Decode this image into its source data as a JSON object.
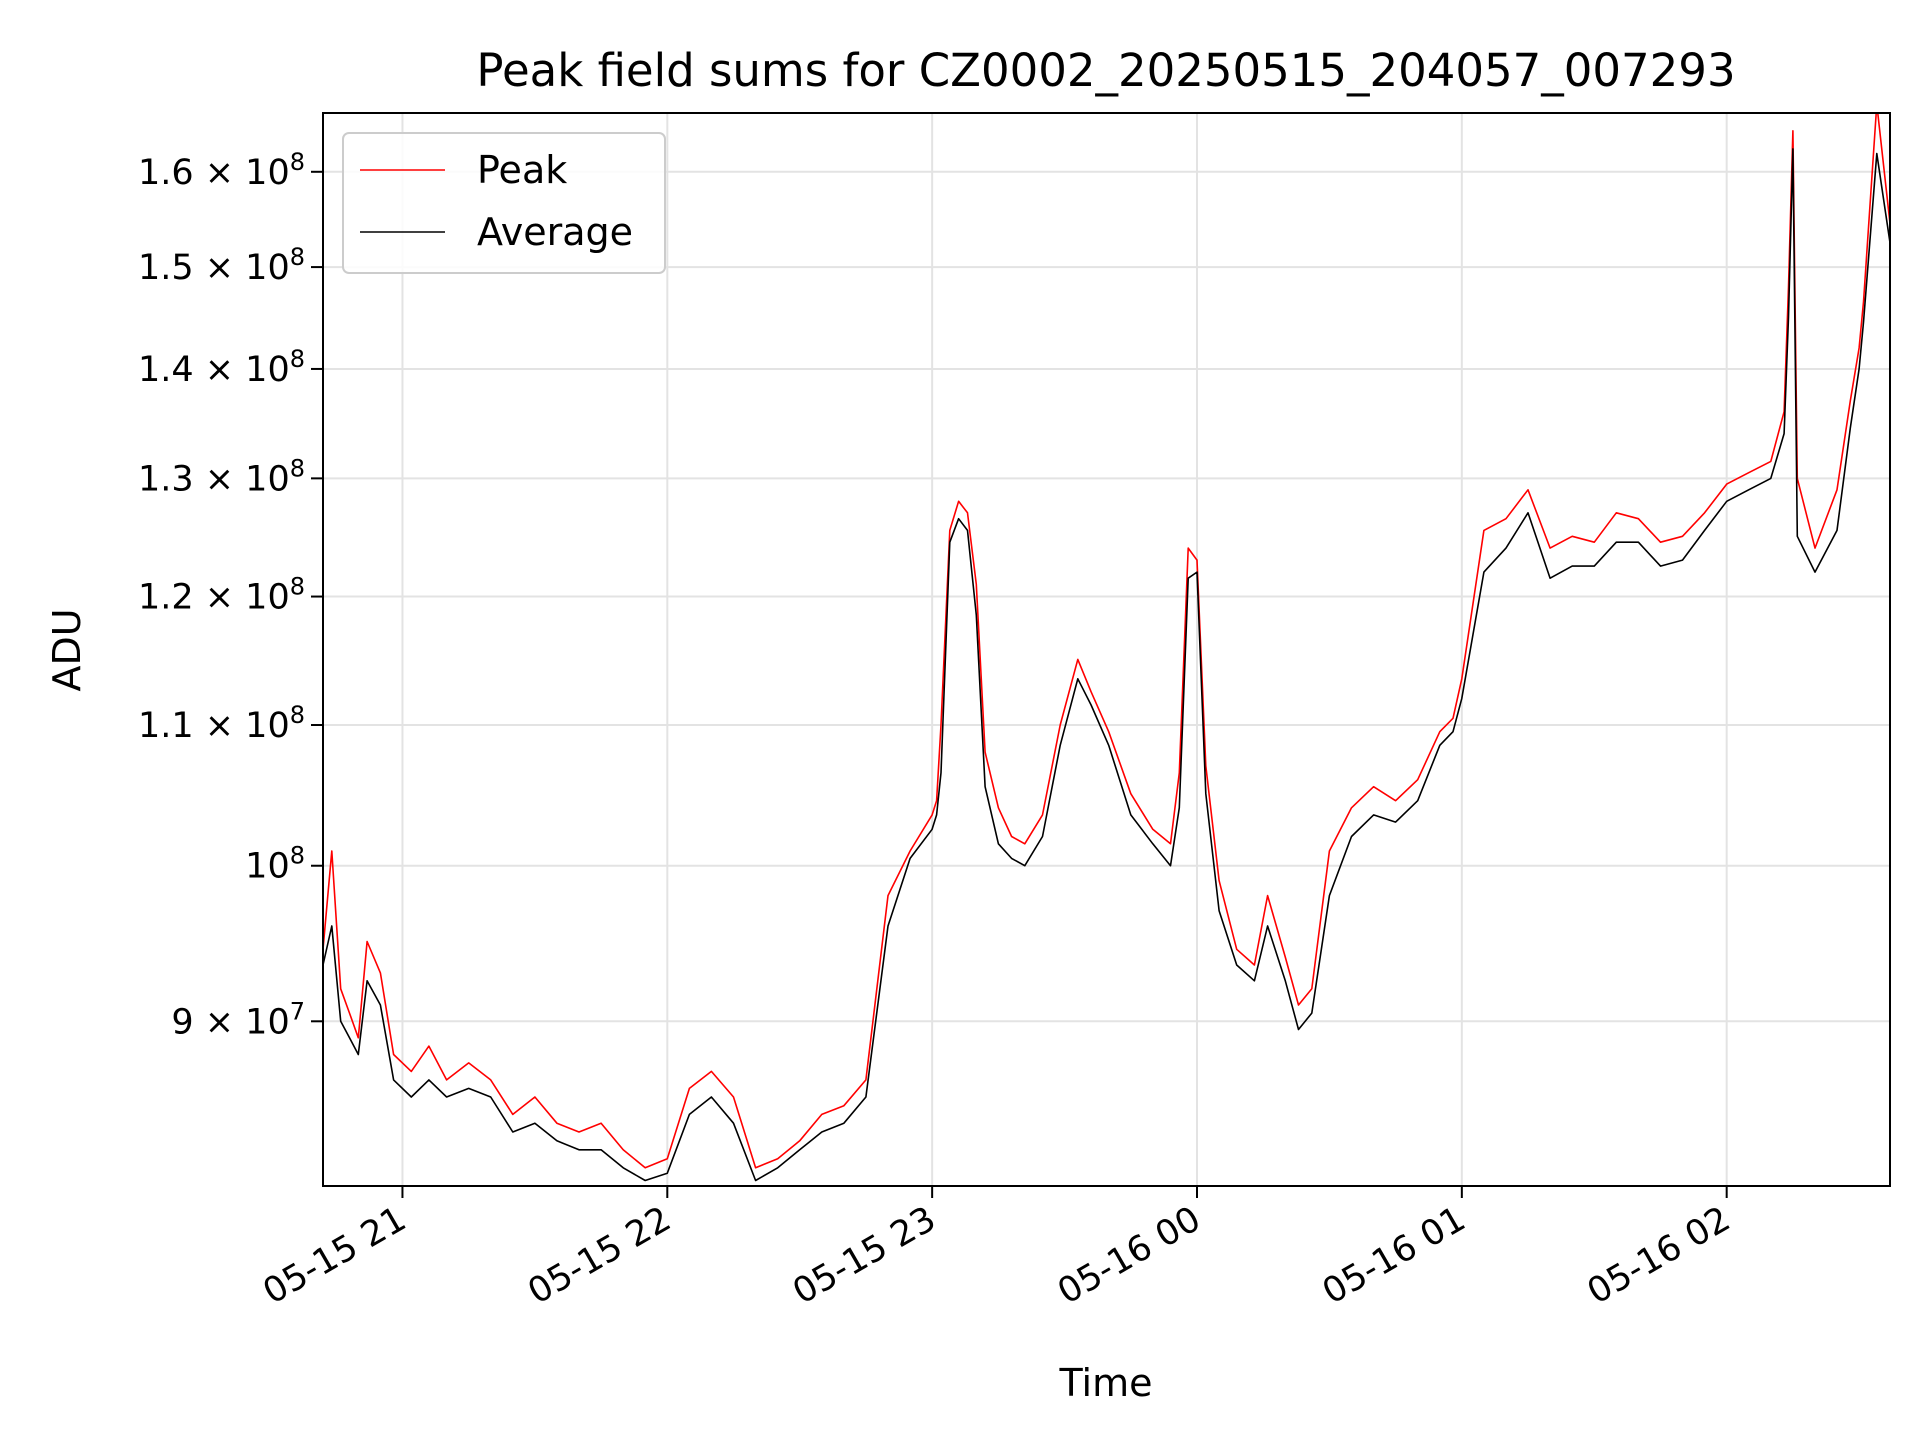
{
  "chart_data": {
    "type": "line",
    "title": "Peak field sums for CZ0002_20250515_204057_007293",
    "xlabel": "Time",
    "ylabel": "ADU",
    "yscale": "log",
    "xlim": [
      "2025-05-15 20:42",
      "2025-05-16 02:37"
    ],
    "ylim": [
      80500000,
      166500000
    ],
    "grid": true,
    "legend_position": "top-left",
    "x_ticks": [
      {
        "value": "2025-05-15 21:00",
        "label": "05-15 21"
      },
      {
        "value": "2025-05-15 22:00",
        "label": "05-15 22"
      },
      {
        "value": "2025-05-15 23:00",
        "label": "05-15 23"
      },
      {
        "value": "2025-05-16 00:00",
        "label": "05-16 00"
      },
      {
        "value": "2025-05-16 01:00",
        "label": "05-16 01"
      },
      {
        "value": "2025-05-16 02:00",
        "label": "05-16 02"
      }
    ],
    "y_ticks": [
      {
        "value": 90000000,
        "mantissa": "9",
        "exponent": "7",
        "text": "9 × 10^7"
      },
      {
        "value": 100000000,
        "mantissa": "",
        "exponent": "8",
        "text": "10^8"
      },
      {
        "value": 110000000,
        "mantissa": "1.1",
        "exponent": "8",
        "text": "1.1 × 10^8"
      },
      {
        "value": 120000000,
        "mantissa": "1.2",
        "exponent": "8",
        "text": "1.2 × 10^8"
      },
      {
        "value": 130000000,
        "mantissa": "1.3",
        "exponent": "8",
        "text": "1.3 × 10^8"
      },
      {
        "value": 140000000,
        "mantissa": "1.4",
        "exponent": "8",
        "text": "1.4 × 10^8"
      },
      {
        "value": 150000000,
        "mantissa": "1.5",
        "exponent": "8",
        "text": "1.5 × 10^8"
      },
      {
        "value": 160000000,
        "mantissa": "1.6",
        "exponent": "8",
        "text": "1.6 × 10^8"
      }
    ],
    "legend": [
      {
        "name": "Peak",
        "color": "#ff0000"
      },
      {
        "name": "Average",
        "color": "#000000"
      }
    ],
    "series": [
      {
        "name": "Peak",
        "color": "#ff0000",
        "x": [
          "2025-05-15 20:42",
          "2025-05-15 20:44",
          "2025-05-15 20:46",
          "2025-05-15 20:48",
          "2025-05-15 20:50",
          "2025-05-15 20:52",
          "2025-05-15 20:55",
          "2025-05-15 20:58",
          "2025-05-15 21:02",
          "2025-05-15 21:06",
          "2025-05-15 21:10",
          "2025-05-15 21:15",
          "2025-05-15 21:20",
          "2025-05-15 21:25",
          "2025-05-15 21:30",
          "2025-05-15 21:35",
          "2025-05-15 21:40",
          "2025-05-15 21:45",
          "2025-05-15 21:50",
          "2025-05-15 21:55",
          "2025-05-15 22:00",
          "2025-05-15 22:05",
          "2025-05-15 22:10",
          "2025-05-15 22:15",
          "2025-05-15 22:20",
          "2025-05-15 22:25",
          "2025-05-15 22:30",
          "2025-05-15 22:35",
          "2025-05-15 22:40",
          "2025-05-15 22:45",
          "2025-05-15 22:50",
          "2025-05-15 22:55",
          "2025-05-15 23:00",
          "2025-05-15 23:01",
          "2025-05-15 23:02",
          "2025-05-15 23:04",
          "2025-05-15 23:06",
          "2025-05-15 23:08",
          "2025-05-15 23:10",
          "2025-05-15 23:12",
          "2025-05-15 23:15",
          "2025-05-15 23:18",
          "2025-05-15 23:21",
          "2025-05-15 23:25",
          "2025-05-15 23:29",
          "2025-05-15 23:33",
          "2025-05-15 23:36",
          "2025-05-15 23:40",
          "2025-05-15 23:45",
          "2025-05-15 23:50",
          "2025-05-15 23:54",
          "2025-05-15 23:56",
          "2025-05-15 23:58",
          "2025-05-16 00:00",
          "2025-05-16 00:02",
          "2025-05-16 00:05",
          "2025-05-16 00:09",
          "2025-05-16 00:13",
          "2025-05-16 00:16",
          "2025-05-16 00:20",
          "2025-05-16 00:23",
          "2025-05-16 00:26",
          "2025-05-16 00:30",
          "2025-05-16 00:35",
          "2025-05-16 00:40",
          "2025-05-16 00:45",
          "2025-05-16 00:50",
          "2025-05-16 00:55",
          "2025-05-16 00:58",
          "2025-05-16 01:00",
          "2025-05-16 01:05",
          "2025-05-16 01:10",
          "2025-05-16 01:15",
          "2025-05-16 01:20",
          "2025-05-16 01:25",
          "2025-05-16 01:30",
          "2025-05-16 01:35",
          "2025-05-16 01:40",
          "2025-05-16 01:45",
          "2025-05-16 01:50",
          "2025-05-16 01:55",
          "2025-05-16 02:00",
          "2025-05-16 02:05",
          "2025-05-16 02:10",
          "2025-05-16 02:13",
          "2025-05-16 02:14",
          "2025-05-16 02:15",
          "2025-05-16 02:16",
          "2025-05-16 02:20",
          "2025-05-16 02:25",
          "2025-05-16 02:28",
          "2025-05-16 02:30",
          "2025-05-16 02:31",
          "2025-05-16 02:34",
          "2025-05-16 02:37"
        ],
        "values": [
          94500000,
          101000000,
          92000000,
          90500000,
          89000000,
          95000000,
          93000000,
          88000000,
          87000000,
          88500000,
          86500000,
          87500000,
          86500000,
          84500000,
          85500000,
          84000000,
          83500000,
          84000000,
          82500000,
          81500000,
          82000000,
          86000000,
          87000000,
          85500000,
          81500000,
          82000000,
          83000000,
          84500000,
          85000000,
          86500000,
          98000000,
          101000000,
          103500000,
          104500000,
          110000000,
          125500000,
          128000000,
          127000000,
          121000000,
          108000000,
          104000000,
          102000000,
          101500000,
          103500000,
          110000000,
          115000000,
          112500000,
          109500000,
          105000000,
          102500000,
          101500000,
          106500000,
          124000000,
          123000000,
          107000000,
          99000000,
          94500000,
          93500000,
          98000000,
          94000000,
          91000000,
          92000000,
          101000000,
          104000000,
          105500000,
          104500000,
          106000000,
          109500000,
          110500000,
          113500000,
          125500000,
          126500000,
          129000000,
          124000000,
          125000000,
          124500000,
          127000000,
          126500000,
          124500000,
          125000000,
          127000000,
          129500000,
          130500000,
          131500000,
          136000000,
          148000000,
          164500000,
          130000000,
          124000000,
          129000000,
          137000000,
          142000000,
          146500000,
          167500000,
          154500000
        ]
      },
      {
        "name": "Average",
        "color": "#000000",
        "x": [
          "2025-05-15 20:42",
          "2025-05-15 20:44",
          "2025-05-15 20:46",
          "2025-05-15 20:48",
          "2025-05-15 20:50",
          "2025-05-15 20:52",
          "2025-05-15 20:55",
          "2025-05-15 20:58",
          "2025-05-15 21:02",
          "2025-05-15 21:06",
          "2025-05-15 21:10",
          "2025-05-15 21:15",
          "2025-05-15 21:20",
          "2025-05-15 21:25",
          "2025-05-15 21:30",
          "2025-05-15 21:35",
          "2025-05-15 21:40",
          "2025-05-15 21:45",
          "2025-05-15 21:50",
          "2025-05-15 21:55",
          "2025-05-15 22:00",
          "2025-05-15 22:05",
          "2025-05-15 22:10",
          "2025-05-15 22:15",
          "2025-05-15 22:20",
          "2025-05-15 22:25",
          "2025-05-15 22:30",
          "2025-05-15 22:35",
          "2025-05-15 22:40",
          "2025-05-15 22:45",
          "2025-05-15 22:50",
          "2025-05-15 22:55",
          "2025-05-15 23:00",
          "2025-05-15 23:01",
          "2025-05-15 23:02",
          "2025-05-15 23:04",
          "2025-05-15 23:06",
          "2025-05-15 23:08",
          "2025-05-15 23:10",
          "2025-05-15 23:12",
          "2025-05-15 23:15",
          "2025-05-15 23:18",
          "2025-05-15 23:21",
          "2025-05-15 23:25",
          "2025-05-15 23:29",
          "2025-05-15 23:33",
          "2025-05-15 23:36",
          "2025-05-15 23:40",
          "2025-05-15 23:45",
          "2025-05-15 23:50",
          "2025-05-15 23:54",
          "2025-05-15 23:56",
          "2025-05-15 23:58",
          "2025-05-16 00:00",
          "2025-05-16 00:02",
          "2025-05-16 00:05",
          "2025-05-16 00:09",
          "2025-05-16 00:13",
          "2025-05-16 00:16",
          "2025-05-16 00:20",
          "2025-05-16 00:23",
          "2025-05-16 00:26",
          "2025-05-16 00:30",
          "2025-05-16 00:35",
          "2025-05-16 00:40",
          "2025-05-16 00:45",
          "2025-05-16 00:50",
          "2025-05-16 00:55",
          "2025-05-16 00:58",
          "2025-05-16 01:00",
          "2025-05-16 01:05",
          "2025-05-16 01:10",
          "2025-05-16 01:15",
          "2025-05-16 01:20",
          "2025-05-16 01:25",
          "2025-05-16 01:30",
          "2025-05-16 01:35",
          "2025-05-16 01:40",
          "2025-05-16 01:45",
          "2025-05-16 01:50",
          "2025-05-16 01:55",
          "2025-05-16 02:00",
          "2025-05-16 02:05",
          "2025-05-16 02:10",
          "2025-05-16 02:13",
          "2025-05-16 02:14",
          "2025-05-16 02:15",
          "2025-05-16 02:16",
          "2025-05-16 02:20",
          "2025-05-16 02:25",
          "2025-05-16 02:28",
          "2025-05-16 02:30",
          "2025-05-16 02:31",
          "2025-05-16 02:34",
          "2025-05-16 02:37"
        ],
        "values": [
          93500000,
          96000000,
          90000000,
          89000000,
          88000000,
          92500000,
          91000000,
          86500000,
          85500000,
          86500000,
          85500000,
          86000000,
          85500000,
          83500000,
          84000000,
          83000000,
          82500000,
          82500000,
          81500000,
          80800000,
          81200000,
          84500000,
          85500000,
          84000000,
          80800000,
          81500000,
          82500000,
          83500000,
          84000000,
          85500000,
          96000000,
          100500000,
          102500000,
          103500000,
          106500000,
          124500000,
          126500000,
          125500000,
          118500000,
          105500000,
          101500000,
          100500000,
          100000000,
          102000000,
          108500000,
          113500000,
          111500000,
          108500000,
          103500000,
          101500000,
          100000000,
          104000000,
          121500000,
          122000000,
          105000000,
          97000000,
          93500000,
          92500000,
          96000000,
          92500000,
          89500000,
          90500000,
          98000000,
          102000000,
          103500000,
          103000000,
          104500000,
          108500000,
          109500000,
          112000000,
          122000000,
          124000000,
          127000000,
          121500000,
          122500000,
          122500000,
          124500000,
          124500000,
          122500000,
          123000000,
          125500000,
          128000000,
          129000000,
          130000000,
          134000000,
          145000000,
          162500000,
          125000000,
          122000000,
          125500000,
          134500000,
          140000000,
          144500000,
          162000000,
          152500000
        ]
      }
    ]
  }
}
